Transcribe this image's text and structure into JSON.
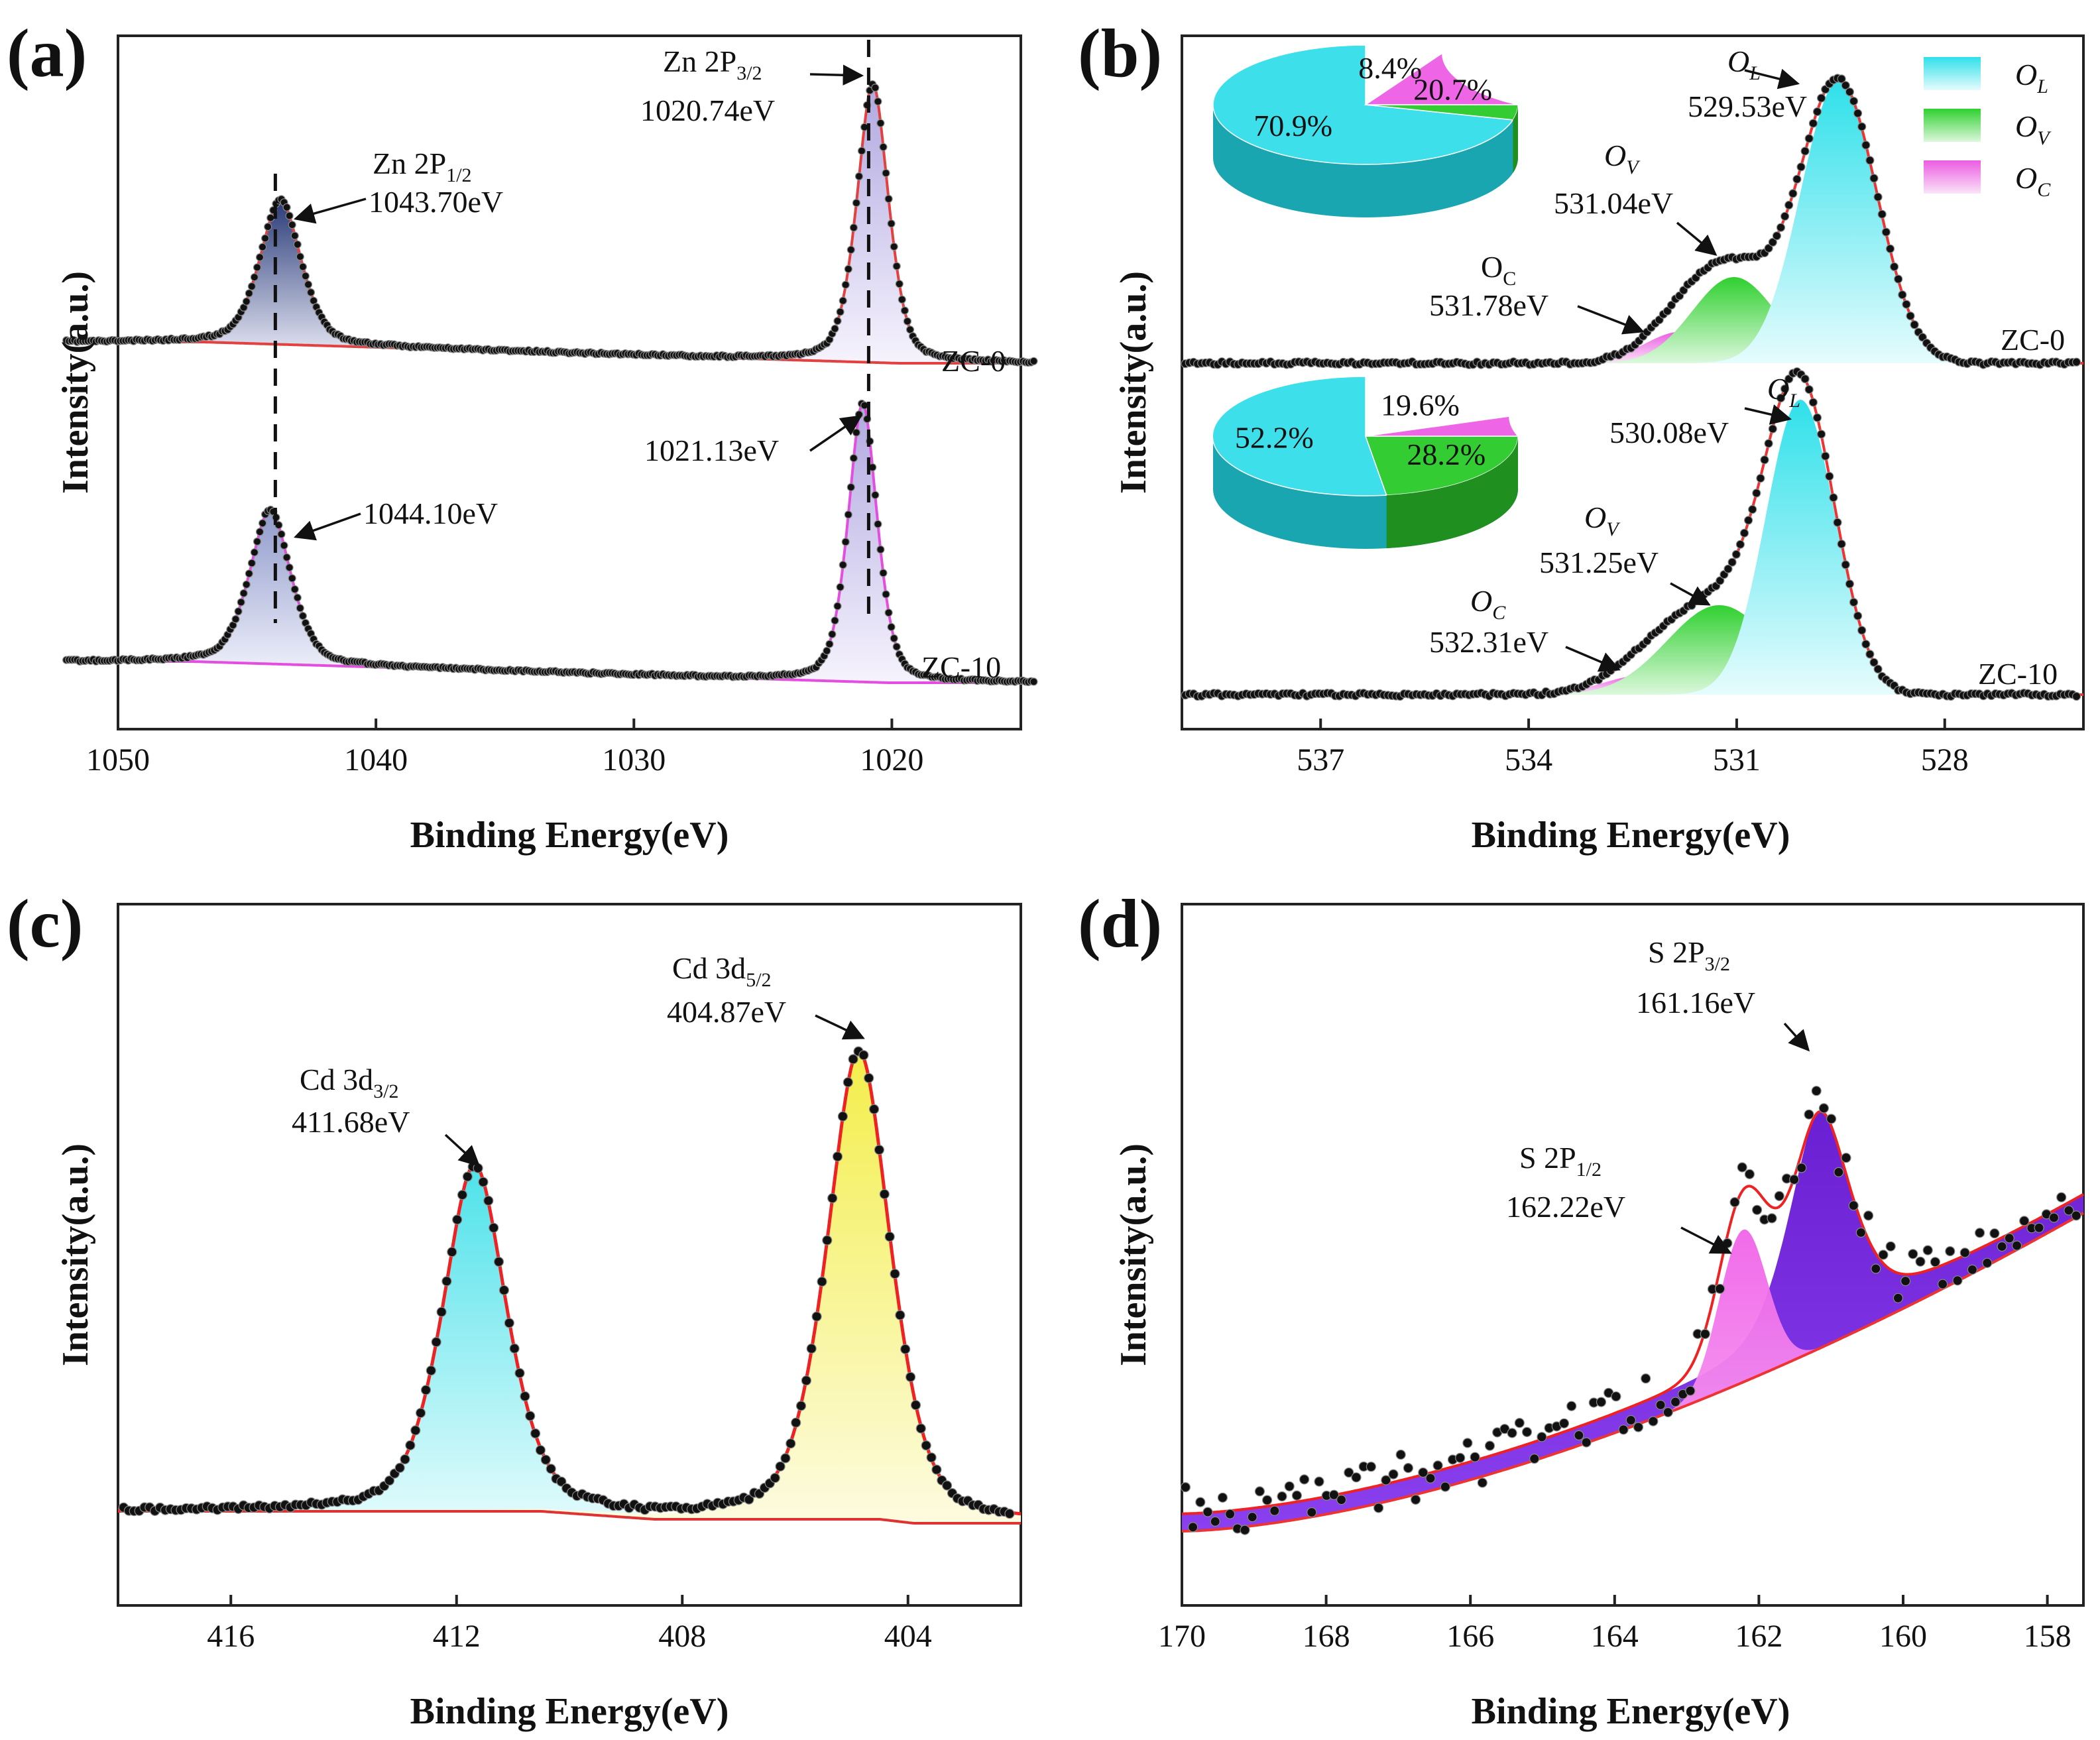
{
  "chart_data": [
    {
      "panel": "(a)",
      "type": "line",
      "xlabel": "Binding Energy(eV)",
      "ylabel": "Intensity(a.u.)",
      "xlim": [
        1050,
        1015
      ],
      "xticks": [
        1050,
        1040,
        1030,
        1020
      ],
      "series": [
        {
          "name": "ZC-0",
          "peaks": [
            {
              "center": 1043.7,
              "label": "Zn 2P",
              "sub": "1/2",
              "value": "1043.70eV"
            },
            {
              "center": 1020.74,
              "label": "Zn 2P",
              "sub": "3/2",
              "value": "1020.74eV"
            }
          ]
        },
        {
          "name": "ZC-10",
          "peaks": [
            {
              "center": 1044.1,
              "value": "1044.10eV"
            },
            {
              "center": 1021.13,
              "value": "1021.13eV"
            }
          ]
        }
      ]
    },
    {
      "panel": "(b)",
      "type": "line",
      "xlabel": "Binding Energy(eV)",
      "ylabel": "Intensity(a.u.)",
      "xlim": [
        539,
        526
      ],
      "xticks": [
        537,
        534,
        531,
        528
      ],
      "legend": {
        "position": "top-right",
        "items": [
          {
            "name": "O",
            "sub": "L",
            "color": "#38e6ee"
          },
          {
            "name": "O",
            "sub": "V",
            "color": "#3ed43e"
          },
          {
            "name": "O",
            "sub": "C",
            "color": "#ee6ce4"
          }
        ]
      },
      "series": [
        {
          "name": "ZC-0",
          "components": [
            {
              "name": "O",
              "sub": "L",
              "center": 529.53,
              "value": "529.53eV"
            },
            {
              "name": "O",
              "sub": "V",
              "center": 531.04,
              "value": "531.04eV"
            },
            {
              "name": "O",
              "sub": "C",
              "center": 531.78,
              "value": "531.78eV"
            }
          ],
          "pie": [
            {
              "label": "70.9%",
              "value": 70.9
            },
            {
              "label": "20.7%",
              "value": 20.7
            },
            {
              "label": "8.4%",
              "value": 8.4
            }
          ]
        },
        {
          "name": "ZC-10",
          "components": [
            {
              "name": "O",
              "sub": "L",
              "center": 530.08,
              "value": "530.08eV"
            },
            {
              "name": "O",
              "sub": "V",
              "center": 531.25,
              "value": "531.25eV"
            },
            {
              "name": "O",
              "sub": "C",
              "center": 532.31,
              "value": "532.31eV"
            }
          ],
          "pie": [
            {
              "label": "52.2%",
              "value": 52.2
            },
            {
              "label": "28.2%",
              "value": 28.2
            },
            {
              "label": "19.6%",
              "value": 19.6
            }
          ]
        }
      ]
    },
    {
      "panel": "(c)",
      "type": "line",
      "xlabel": "Binding Energy(eV)",
      "ylabel": "Intensity(a.u.)",
      "xlim": [
        418,
        402
      ],
      "xticks": [
        416,
        412,
        408,
        404
      ],
      "peaks": [
        {
          "label": "Cd 3d",
          "sub": "3/2",
          "center": 411.68,
          "value": "411.68eV"
        },
        {
          "label": "Cd 3d",
          "sub": "5/2",
          "center": 404.87,
          "value": "404.87eV"
        }
      ]
    },
    {
      "panel": "(d)",
      "type": "line",
      "xlabel": "Binding Energy(eV)",
      "ylabel": "Intensity(a.u.)",
      "xlim": [
        170,
        157.5
      ],
      "xticks": [
        170,
        168,
        166,
        164,
        162,
        160,
        158
      ],
      "peaks": [
        {
          "label": "S 2P",
          "sub": "1/2",
          "center": 162.22,
          "value": "162.22eV"
        },
        {
          "label": "S 2P",
          "sub": "3/2",
          "center": 161.16,
          "value": "161.16eV"
        }
      ]
    }
  ]
}
